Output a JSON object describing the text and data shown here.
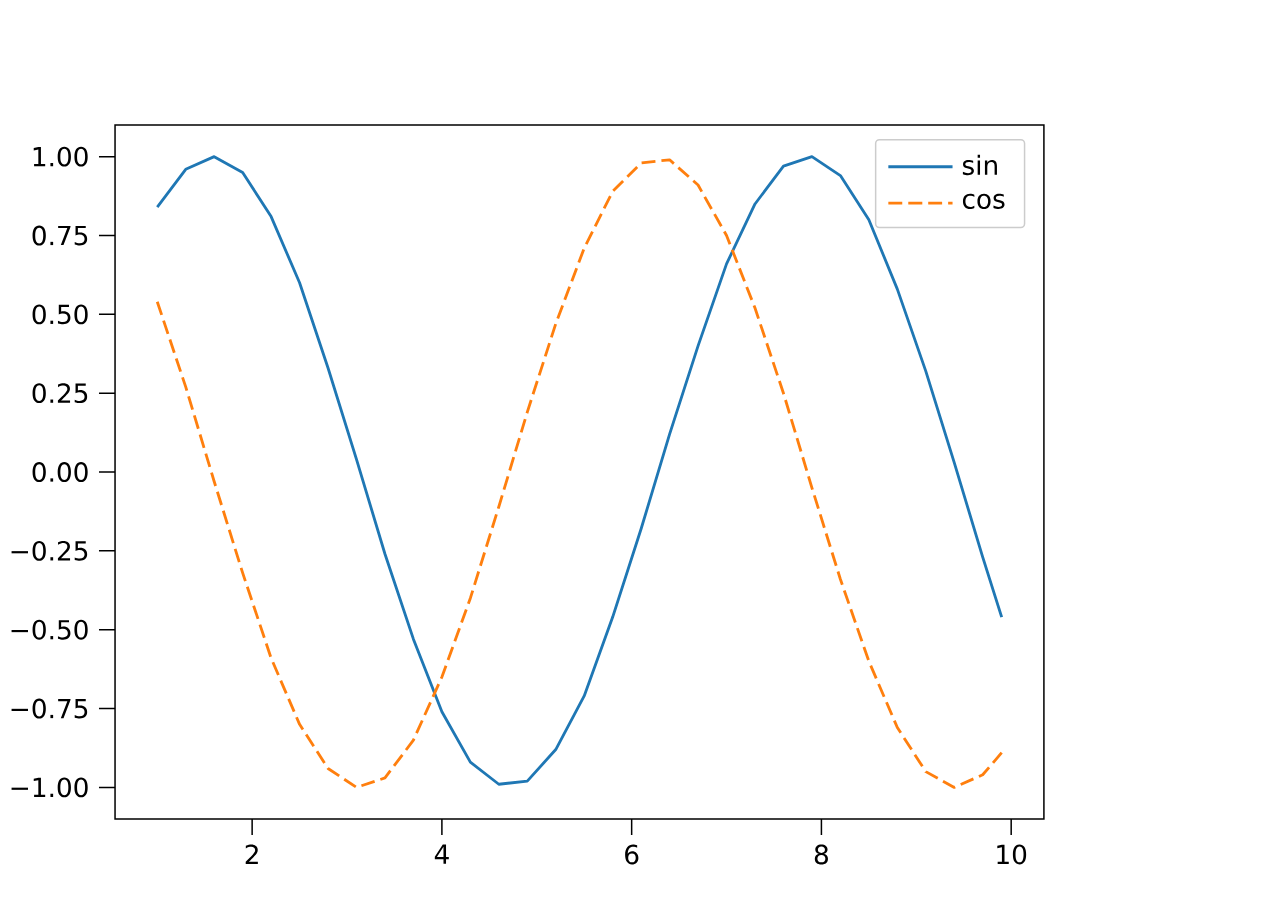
{
  "chart_data": {
    "type": "line",
    "x": [
      1.0,
      1.3,
      1.6,
      1.9,
      2.2,
      2.5,
      2.8,
      3.1,
      3.4,
      3.7,
      4.0,
      4.3,
      4.6,
      4.9,
      5.2,
      5.5,
      5.8,
      6.1,
      6.4,
      6.7,
      7.0,
      7.3,
      7.6,
      7.9,
      8.2,
      8.5,
      8.8,
      9.1,
      9.4,
      9.7,
      9.9
    ],
    "series": [
      {
        "name": "sin",
        "color": "#1f77b4",
        "line_style": "solid",
        "values": [
          0.84,
          0.96,
          1.0,
          0.95,
          0.81,
          0.6,
          0.33,
          0.04,
          -0.26,
          -0.53,
          -0.76,
          -0.92,
          -0.99,
          -0.98,
          -0.88,
          -0.71,
          -0.46,
          -0.18,
          0.12,
          0.4,
          0.66,
          0.85,
          0.97,
          1.0,
          0.94,
          0.8,
          0.58,
          0.32,
          0.03,
          -0.27,
          -0.46
        ]
      },
      {
        "name": "cos",
        "color": "#ff7f0e",
        "line_style": "dashed",
        "values": [
          0.54,
          0.27,
          -0.03,
          -0.32,
          -0.59,
          -0.8,
          -0.94,
          -1.0,
          -0.97,
          -0.85,
          -0.65,
          -0.4,
          -0.11,
          0.19,
          0.47,
          0.71,
          0.89,
          0.98,
          0.99,
          0.91,
          0.75,
          0.52,
          0.25,
          -0.05,
          -0.34,
          -0.6,
          -0.81,
          -0.95,
          -1.0,
          -0.96,
          -0.89
        ]
      }
    ],
    "xlim": [
      0.555,
      10.345
    ],
    "ylim": [
      -1.1,
      1.1
    ],
    "xticks": [
      2,
      4,
      6,
      8,
      10
    ],
    "yticks": [
      {
        "value": -1,
        "label": "−1.00"
      },
      {
        "value": -0.75,
        "label": "−0.75"
      },
      {
        "value": -0.5,
        "label": "−0.50"
      },
      {
        "value": -0.25,
        "label": "−0.25"
      },
      {
        "value": 0,
        "label": "0.00"
      },
      {
        "value": 0.25,
        "label": "0.25"
      },
      {
        "value": 0.5,
        "label": "0.50"
      },
      {
        "value": 0.75,
        "label": "0.75"
      },
      {
        "value": 1,
        "label": "1.00"
      }
    ],
    "legend": "top right",
    "grid": false,
    "marker": "none"
  }
}
